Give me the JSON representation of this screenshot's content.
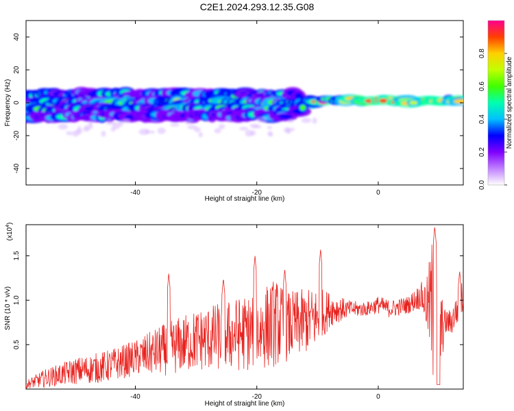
{
  "title": "C2E1.2024.293.12.35.G08",
  "chart_data": [
    {
      "type": "heatmap",
      "xlabel": "Height of straight line (km)",
      "ylabel": "Frequency (Hz)",
      "xlim": [
        -58,
        14
      ],
      "ylim": [
        -50,
        50
      ],
      "xticks": [
        -40,
        -20,
        0
      ],
      "yticks": [
        -40,
        -20,
        0,
        20,
        40
      ],
      "colorbar": {
        "label": "Normalized spectral amplitude",
        "range": [
          0,
          1
        ],
        "ticks": [
          "0.0",
          "0.2",
          "0.4",
          "0.6",
          "0.8"
        ]
      },
      "bands": [
        {
          "x0": -58,
          "x1": -13,
          "center": 5,
          "half_width": 2,
          "amplitude": 0.45
        },
        {
          "x0": -58,
          "x1": -10,
          "center": 0,
          "half_width": 2,
          "amplitude": 0.55
        },
        {
          "x0": -58,
          "x1": -12,
          "center": -4,
          "half_width": 2,
          "amplitude": 0.5
        },
        {
          "x0": -58,
          "x1": -15,
          "center": -8,
          "half_width": 2,
          "amplitude": 0.35
        },
        {
          "x0": -10,
          "x1": 14,
          "center": 1.5,
          "half_width": 1.5,
          "amplitude": 0.85
        },
        {
          "x0": -3,
          "x1": 1,
          "center": 1.5,
          "half_width": 1.5,
          "amplitude": 1.0
        },
        {
          "x0": 2,
          "x1": 6,
          "center": 0.5,
          "half_width": 1.5,
          "amplitude": 0.95
        }
      ]
    },
    {
      "type": "line",
      "xlabel": "Height of straight line (km)",
      "ylabel": "SNR (10 * v/v)",
      "y_multiplier": "(x10",
      "y_multiplier_exp": "4",
      "y_multiplier_close": ")",
      "xlim": [
        -58,
        14
      ],
      "ylim": [
        0,
        1.85
      ],
      "xticks": [
        -40,
        -20,
        0
      ],
      "yticks": [
        0.5,
        1.0,
        1.5
      ],
      "ytick_labels": [
        "0.5",
        "1.0",
        "1.5"
      ],
      "series": [
        {
          "color": "#e8221e",
          "envelope": {
            "x": [
              -58,
              -55,
              -50,
              -45,
              -40,
              -35,
              -30,
              -25,
              -20,
              -17,
              -15,
              -10,
              -8,
              -5,
              -2,
              0,
              2,
              5,
              7,
              8,
              9,
              10,
              11,
              12,
              13,
              14
            ],
            "mid": [
              0.05,
              0.12,
              0.2,
              0.25,
              0.35,
              0.45,
              0.55,
              0.6,
              0.65,
              0.75,
              0.7,
              0.8,
              0.9,
              0.9,
              0.9,
              0.95,
              0.9,
              0.95,
              1.05,
              0.95,
              0.9,
              0.6,
              0.75,
              0.75,
              0.9,
              1.05
            ],
            "amp": [
              0.05,
              0.1,
              0.15,
              0.18,
              0.2,
              0.3,
              0.35,
              0.4,
              0.45,
              0.5,
              0.4,
              0.35,
              0.2,
              0.1,
              0.08,
              0.1,
              0.1,
              0.1,
              0.15,
              0.3,
              0.9,
              0.6,
              0.15,
              0.15,
              0.2,
              0.2
            ]
          },
          "peaks": [
            {
              "x": -20.3,
              "y": 1.5
            },
            {
              "x": -15.4,
              "y": 1.35
            },
            {
              "x": -9.5,
              "y": 1.57
            },
            {
              "x": -34.5,
              "y": 1.3
            },
            {
              "x": -25.5,
              "y": 1.25
            },
            {
              "x": 9.3,
              "y": 1.83
            },
            {
              "x": 13.4,
              "y": 1.33
            }
          ]
        }
      ]
    }
  ]
}
